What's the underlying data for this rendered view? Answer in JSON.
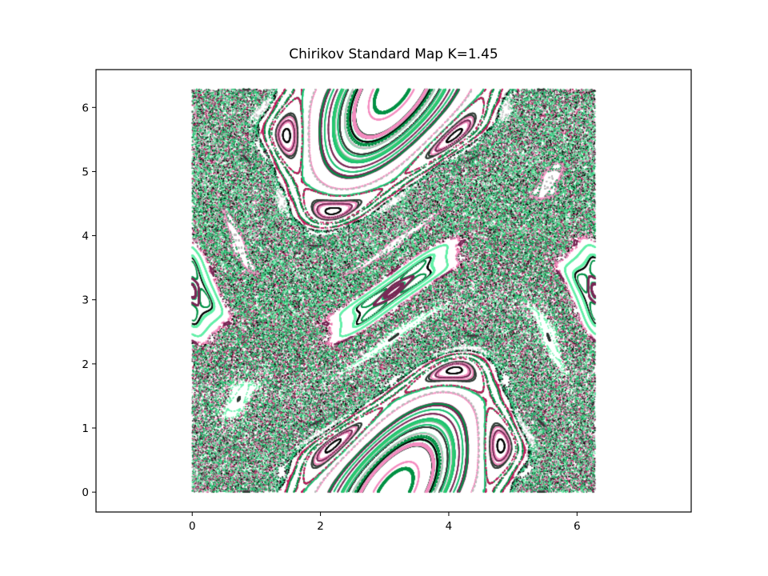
{
  "chart_data": {
    "type": "scatter",
    "title": "Chirikov Standard Map K=1.45",
    "xlabel": "",
    "ylabel": "",
    "xlim": [
      -1.5,
      7.78
    ],
    "ylim": [
      -0.31,
      6.59
    ],
    "x_ticks": [
      "0",
      "2",
      "4",
      "6"
    ],
    "y_ticks": [
      "0",
      "1",
      "2",
      "3",
      "4",
      "5",
      "6"
    ],
    "grid": false,
    "legend": "none",
    "map": {
      "K": 1.45,
      "theta_range": [
        0,
        6.283
      ],
      "p_range": [
        0,
        6.283
      ]
    },
    "palette": [
      "#000000",
      "#2f3a34",
      "#bcbcbc",
      "#7a2a57",
      "#c2185b",
      "#f48fc1",
      "#2ecc71",
      "#009246",
      "#63f0a8",
      "#1fbf73"
    ]
  }
}
